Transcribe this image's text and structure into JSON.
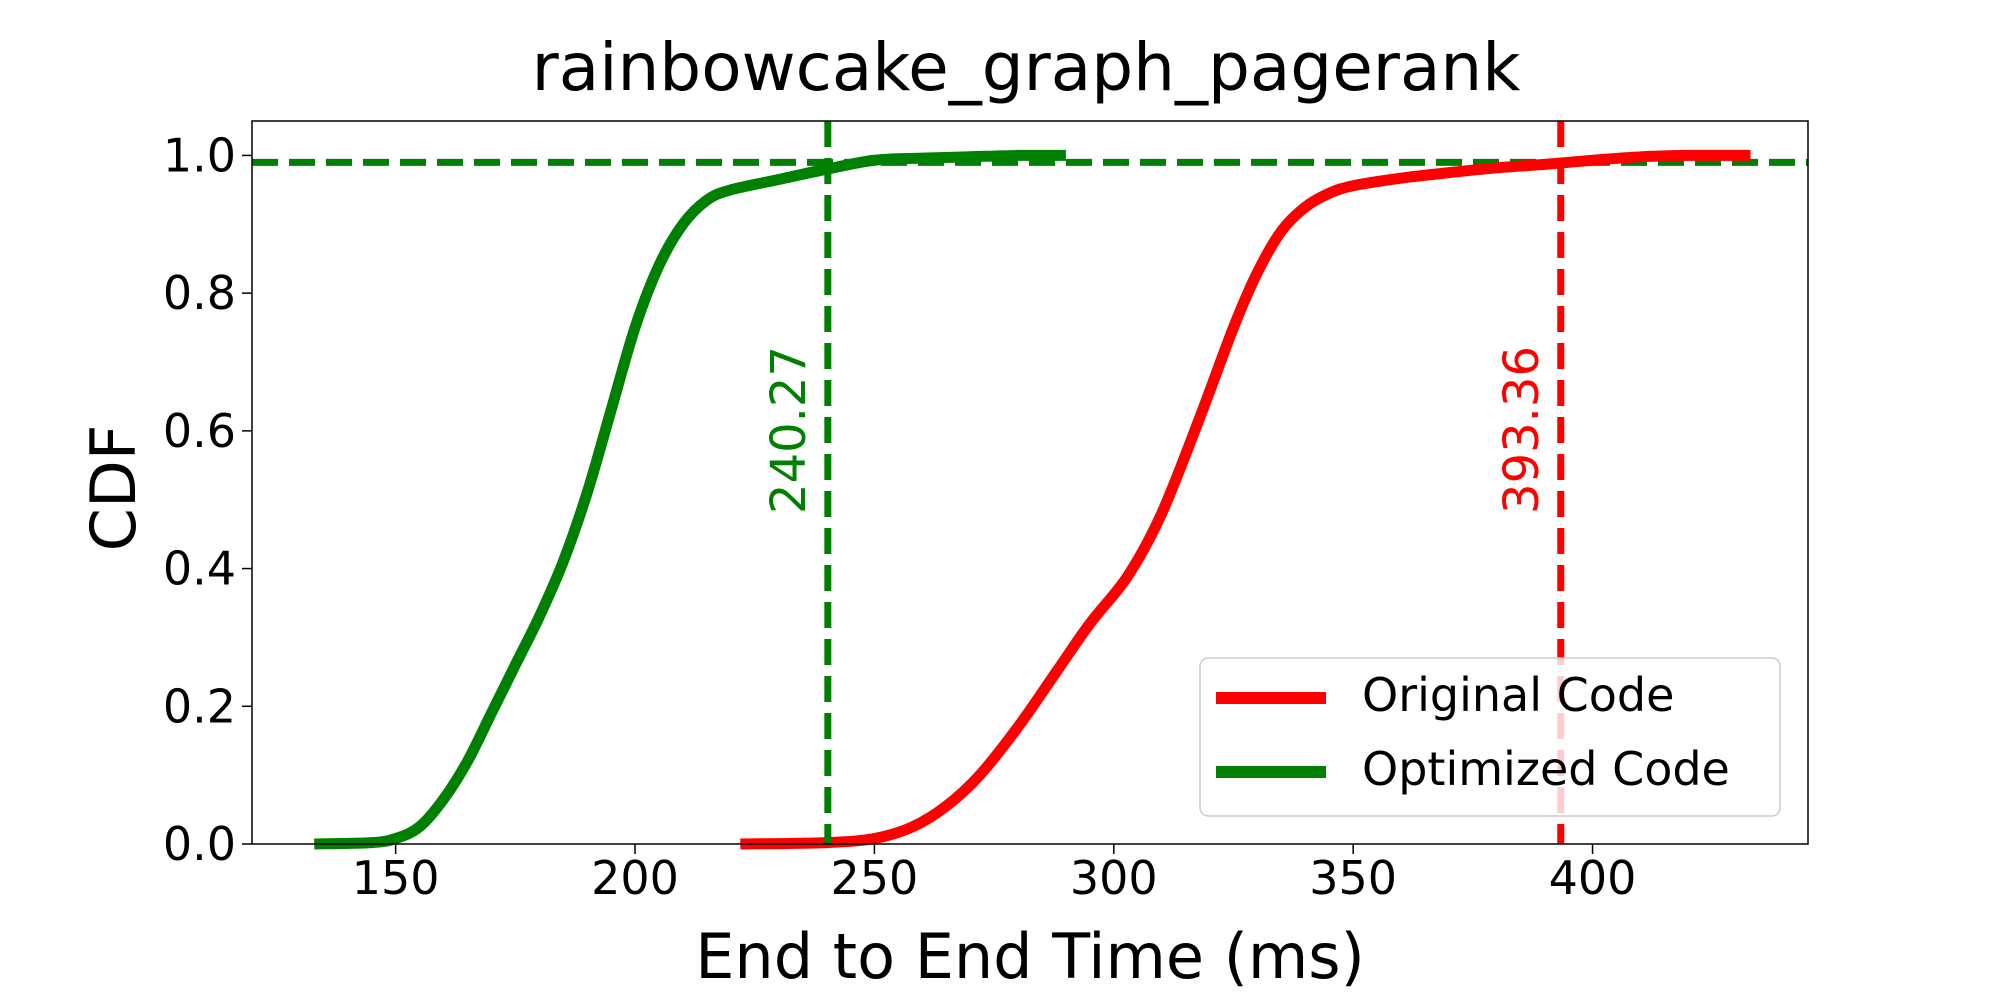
{
  "chart_data": {
    "type": "line",
    "title": "rainbowcake_graph_pagerank",
    "xlabel": "End to End Time (ms)",
    "ylabel": "CDF",
    "xlim": [
      120,
      445
    ],
    "ylim": [
      0,
      1.05
    ],
    "xticks": [
      150,
      200,
      250,
      300,
      350,
      400
    ],
    "xtick_labels": [
      "150",
      "200",
      "250",
      "300",
      "350",
      "400"
    ],
    "yticks": [
      0.0,
      0.2,
      0.4,
      0.6,
      0.8,
      1.0
    ],
    "ytick_labels": [
      "0.0",
      "0.2",
      "0.4",
      "0.6",
      "0.8",
      "1.0"
    ],
    "grid": false,
    "legend_position": "lower-right",
    "hline": {
      "y": 0.99,
      "color": "#008000"
    },
    "series": [
      {
        "name": "Original Code",
        "color": "#ff0000",
        "x": [
          222,
          240,
          250,
          258,
          265,
          272,
          280,
          288,
          295,
          303,
          310,
          318,
          325,
          330,
          335,
          340,
          345,
          350,
          360,
          370,
          380,
          390,
          400,
          410,
          420,
          433
        ],
        "y": [
          0.0,
          0.002,
          0.008,
          0.025,
          0.055,
          0.1,
          0.17,
          0.25,
          0.32,
          0.39,
          0.48,
          0.62,
          0.75,
          0.83,
          0.89,
          0.925,
          0.945,
          0.956,
          0.967,
          0.975,
          0.982,
          0.987,
          0.993,
          0.998,
          1.0,
          1.0
        ],
        "vline": {
          "x": 393.36,
          "label": "393.36"
        }
      },
      {
        "name": "Optimized Code",
        "color": "#008000",
        "x": [
          133,
          145,
          150,
          155,
          160,
          165,
          170,
          175,
          180,
          185,
          190,
          195,
          200,
          205,
          210,
          215,
          220,
          230,
          240,
          250,
          260,
          270,
          280,
          290
        ],
        "y": [
          0.0,
          0.002,
          0.008,
          0.025,
          0.065,
          0.12,
          0.19,
          0.26,
          0.33,
          0.41,
          0.51,
          0.63,
          0.75,
          0.84,
          0.9,
          0.935,
          0.95,
          0.965,
          0.98,
          0.993,
          0.996,
          0.998,
          1.0,
          1.0
        ],
        "vline": {
          "x": 240.27,
          "label": "240.27"
        }
      }
    ]
  }
}
